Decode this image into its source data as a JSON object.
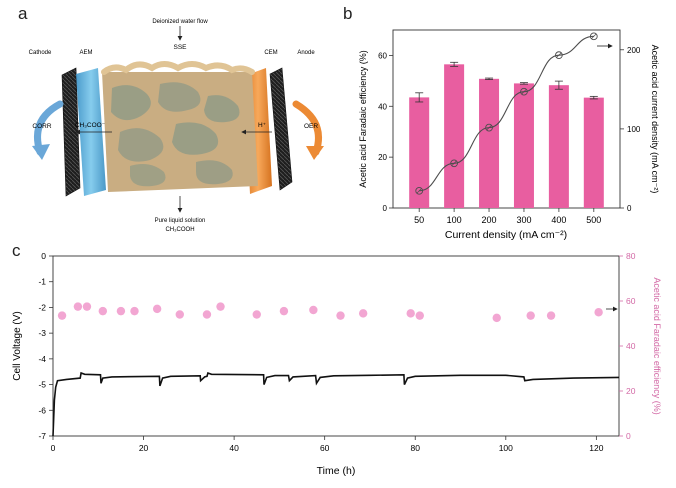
{
  "panels": {
    "a": "a",
    "b": "b",
    "c": "c"
  },
  "schematic": {
    "water_flow_label": "Deionized water flow",
    "sse_label": "SSE",
    "cathode_label": "Cathode",
    "aem_label": "AEM",
    "cem_label": "CEM",
    "anode_label": "Anode",
    "corr_label": "CORR",
    "oer_label": "OER",
    "acetate_ion_label": "CH₃COO⁻",
    "proton_label": "H⁺",
    "product_label": "Pure liquid solution",
    "product_formula": "CH₃COOH",
    "colors": {
      "aem": "#5bb4de",
      "cem": "#ee8a2e",
      "electrode": "#2b2b2b",
      "sse": "#c9ad82",
      "sse_pores": "#8f9a86",
      "arrows": "#6aa7d8"
    }
  },
  "chart_data": [
    {
      "type": "bar+line",
      "xlabel": "Current density (mA cm⁻²)",
      "ylabel_left": "Acetic acid Faradaic efficiency (%)",
      "ylabel_right": "Acetic acid current density (mA cm⁻²)",
      "categories": [
        "50",
        "100",
        "200",
        "300",
        "400",
        "500"
      ],
      "bars": {
        "values": [
          43.5,
          56.5,
          50.8,
          49.0,
          48.3,
          43.4
        ],
        "errors": [
          1.8,
          0.8,
          0.3,
          0.3,
          1.6,
          0.5
        ],
        "color": "#e85ea0"
      },
      "line": {
        "values": [
          21.7,
          56.5,
          101.6,
          147.0,
          193.2,
          217.0
        ],
        "color": "#4d4d4d"
      },
      "ylim_left": [
        0,
        70
      ],
      "yticks_left": [
        "0",
        "20",
        "40",
        "60"
      ],
      "ylim_right": [
        0,
        225
      ],
      "yticks_right": [
        "0",
        "100",
        "200"
      ],
      "grid": false
    },
    {
      "type": "line+scatter",
      "xlabel": "Time (h)",
      "ylabel_left": "Cell Voltage (V)",
      "ylabel_right": "Acetic acid Faradaic efficiency (%)",
      "xlim": [
        0,
        125
      ],
      "xticks": [
        "0",
        "20",
        "40",
        "60",
        "80",
        "100",
        "120"
      ],
      "ylim_left": [
        -7,
        0
      ],
      "yticks_left": [
        "0",
        "-1",
        "-2",
        "-3",
        "-4",
        "-5",
        "-6",
        "-7"
      ],
      "ylim_right": [
        0,
        80
      ],
      "yticks_right": [
        "0",
        "20",
        "40",
        "60",
        "80"
      ],
      "voltage": {
        "color": "#111111",
        "points": [
          [
            0,
            -7.0
          ],
          [
            0.3,
            -5.6
          ],
          [
            0.6,
            -5.1
          ],
          [
            1,
            -4.85
          ],
          [
            3,
            -4.8
          ],
          [
            6,
            -4.75
          ],
          [
            6.2,
            -4.55
          ],
          [
            7,
            -4.6
          ],
          [
            10.5,
            -4.62
          ],
          [
            10.6,
            -4.95
          ],
          [
            11,
            -4.75
          ],
          [
            13,
            -4.7
          ],
          [
            23.5,
            -4.68
          ],
          [
            23.6,
            -5.05
          ],
          [
            24.2,
            -4.75
          ],
          [
            26,
            -4.68
          ],
          [
            32.5,
            -4.66
          ],
          [
            32.6,
            -4.85
          ],
          [
            33.5,
            -4.7
          ],
          [
            34,
            -4.68
          ],
          [
            34.2,
            -4.55
          ],
          [
            35,
            -4.6
          ],
          [
            46.5,
            -4.62
          ],
          [
            46.6,
            -5.0
          ],
          [
            47.2,
            -4.72
          ],
          [
            49,
            -4.65
          ],
          [
            52,
            -4.65
          ],
          [
            52.2,
            -4.85
          ],
          [
            53,
            -4.7
          ],
          [
            58,
            -4.65
          ],
          [
            58.2,
            -4.95
          ],
          [
            59,
            -4.72
          ],
          [
            62,
            -4.66
          ],
          [
            70,
            -4.64
          ],
          [
            77.5,
            -4.62
          ],
          [
            77.6,
            -5.0
          ],
          [
            78.3,
            -4.75
          ],
          [
            80,
            -4.68
          ],
          [
            90,
            -4.64
          ],
          [
            100,
            -4.64
          ],
          [
            104,
            -4.7
          ],
          [
            104.2,
            -4.85
          ],
          [
            106,
            -4.8
          ],
          [
            115,
            -4.75
          ],
          [
            125,
            -4.72
          ]
        ]
      },
      "faradaic_efficiency": {
        "color": "#f2a6d2",
        "points": [
          [
            2,
            53.5
          ],
          [
            5.5,
            57.5
          ],
          [
            7.5,
            57.5
          ],
          [
            11,
            55.5
          ],
          [
            15,
            55.5
          ],
          [
            18,
            55.5
          ],
          [
            23,
            56.5
          ],
          [
            28,
            54.0
          ],
          [
            34,
            54.0
          ],
          [
            37,
            57.5
          ],
          [
            45,
            54.0
          ],
          [
            51,
            55.5
          ],
          [
            57.5,
            56.0
          ],
          [
            63.5,
            53.5
          ],
          [
            68.5,
            54.5
          ],
          [
            79,
            54.5
          ],
          [
            81,
            53.5
          ],
          [
            98,
            52.5
          ],
          [
            105.5,
            53.5
          ],
          [
            110,
            53.5
          ],
          [
            120.5,
            55.0
          ]
        ]
      }
    }
  ]
}
